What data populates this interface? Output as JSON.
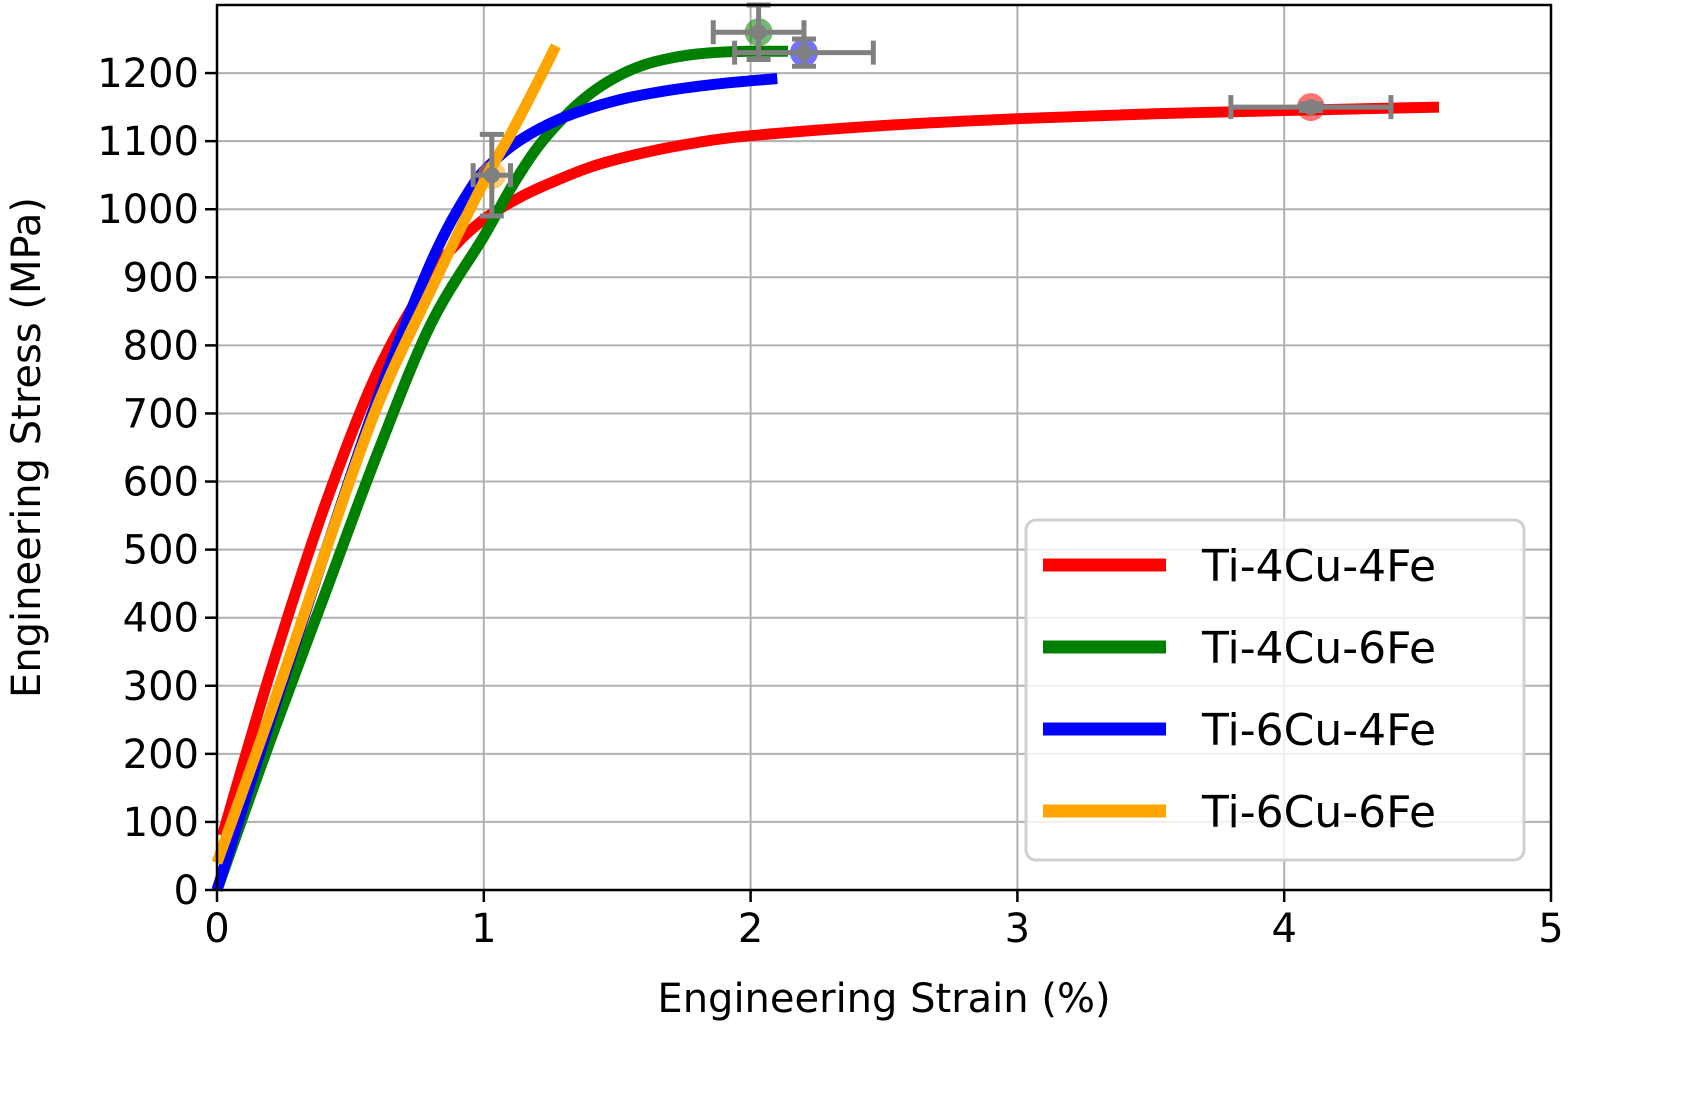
{
  "chart_data": {
    "type": "line",
    "title": "",
    "xlabel": "Engineering Strain (%)",
    "ylabel": "Engineering Stress (MPa)",
    "xlim": [
      0,
      5
    ],
    "ylim": [
      0,
      1300
    ],
    "xticks": [
      0,
      1,
      2,
      3,
      4,
      5
    ],
    "yticks": [
      0,
      100,
      200,
      300,
      400,
      500,
      600,
      700,
      800,
      900,
      1000,
      1100,
      1200
    ],
    "grid": true,
    "legend_position": "lower-right",
    "series": [
      {
        "name": "Ti-4Cu-4Fe",
        "color": "#ff0000",
        "x": [
          0.02,
          0.2,
          0.4,
          0.6,
          0.8,
          0.9,
          1.0,
          1.1,
          1.2,
          1.4,
          1.6,
          1.8,
          2.0,
          2.5,
          3.0,
          3.5,
          4.0,
          4.58
        ],
        "y": [
          80,
          320,
          560,
          760,
          900,
          950,
          985,
          1010,
          1030,
          1062,
          1083,
          1098,
          1108,
          1123,
          1133,
          1140,
          1145,
          1150
        ],
        "marker": {
          "x": 4.1,
          "y": 1150,
          "xerr": 0.3,
          "yerr": 5
        }
      },
      {
        "name": "Ti-4Cu-6Fe",
        "color": "#008000",
        "x": [
          0.0,
          0.2,
          0.4,
          0.6,
          0.8,
          1.0,
          1.1,
          1.2,
          1.3,
          1.4,
          1.5,
          1.6,
          1.7,
          1.8,
          1.9,
          2.0,
          2.1,
          2.14
        ],
        "y": [
          0,
          220,
          430,
          640,
          830,
          960,
          1030,
          1090,
          1135,
          1170,
          1195,
          1212,
          1222,
          1228,
          1231,
          1232,
          1232,
          1232
        ],
        "marker": {
          "x": 2.03,
          "y": 1260,
          "xerr": 0.17,
          "yerr": 40
        }
      },
      {
        "name": "Ti-6Cu-4Fe",
        "color": "#0000ff",
        "x": [
          0.0,
          0.2,
          0.4,
          0.6,
          0.8,
          0.95,
          1.05,
          1.15,
          1.3,
          1.5,
          1.7,
          1.9,
          2.1
        ],
        "y": [
          0,
          250,
          490,
          720,
          920,
          1030,
          1075,
          1105,
          1135,
          1160,
          1175,
          1185,
          1192
        ],
        "marker": {
          "x": 2.2,
          "y": 1230,
          "xerr": 0.26,
          "yerr": 20
        }
      },
      {
        "name": "Ti-6Cu-6Fe",
        "color": "#ffa500",
        "x": [
          0.0,
          0.2,
          0.4,
          0.6,
          0.8,
          1.0,
          1.1,
          1.2,
          1.27
        ],
        "y": [
          40,
          260,
          490,
          710,
          880,
          1040,
          1110,
          1185,
          1240
        ],
        "marker": {
          "x": 1.03,
          "y": 1050,
          "xerr": 0.07,
          "yerr": 60
        }
      }
    ]
  }
}
